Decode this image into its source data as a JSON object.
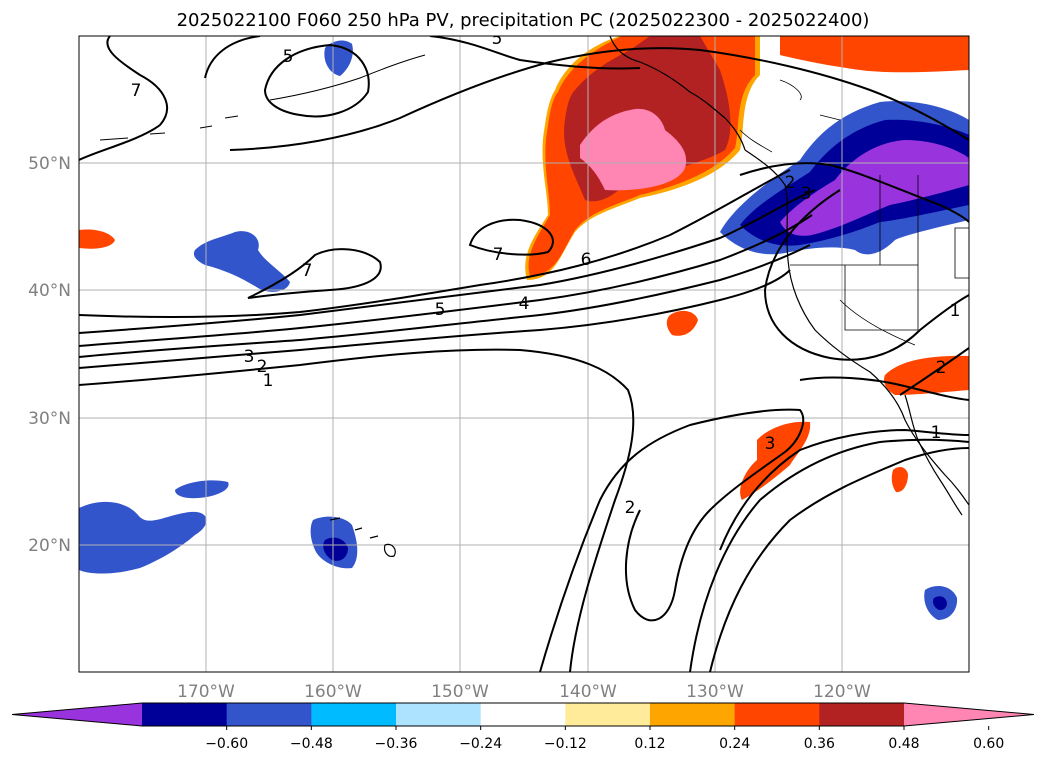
{
  "title": "2025022100 F060 250 hPa PV, precipitation PC (2025022300 - 2025022400)",
  "map": {
    "lon_range": [
      -180,
      -110
    ],
    "lat_range": [
      10,
      60
    ],
    "lat_ticks": [
      {
        "value": 50,
        "label": "50°N"
      },
      {
        "value": 40,
        "label": "40°N"
      },
      {
        "value": 30,
        "label": "30°N"
      },
      {
        "value": 20,
        "label": "20°N"
      }
    ],
    "lon_ticks": [
      {
        "value": -170,
        "label": "170°W"
      },
      {
        "value": -160,
        "label": "160°W"
      },
      {
        "value": -150,
        "label": "150°W"
      },
      {
        "value": -140,
        "label": "140°W"
      },
      {
        "value": -130,
        "label": "130°W"
      },
      {
        "value": -120,
        "label": "120°W"
      }
    ],
    "gridlines": true
  },
  "pv_contour_labels": [
    "7",
    "5",
    "5",
    "7",
    "7",
    "6",
    "5",
    "4",
    "3",
    "2",
    "1",
    "2",
    "3",
    "1",
    "2",
    "1",
    "2",
    "3"
  ],
  "colorbar": {
    "ticks": [
      "−0.60",
      "−0.48",
      "−0.36",
      "−0.24",
      "−0.12",
      "0.12",
      "0.24",
      "0.36",
      "0.48",
      "0.60"
    ],
    "colors": [
      "#9933dd",
      "#000099",
      "#3355cc",
      "#00bbff",
      "#aee3ff",
      "#ffffff",
      "#ffeb99",
      "#ffa500",
      "#ff4500",
      "#b22222",
      "#ff85b3"
    ],
    "extend": "both"
  }
}
